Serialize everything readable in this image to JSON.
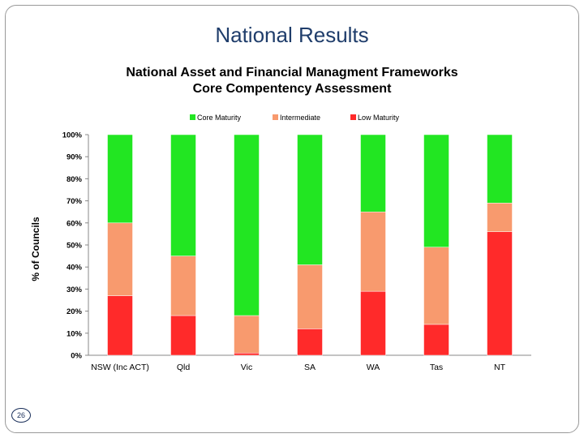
{
  "page_title": "National Results",
  "page_number": "26",
  "chart_data": {
    "type": "bar",
    "stacked": true,
    "title_lines": [
      "National Asset and Financial Managment Frameworks",
      "Core Compentency Assessment"
    ],
    "ylabel": "% of Councils",
    "xlabel": "",
    "ylim": [
      0,
      100
    ],
    "yticks": [
      "0%",
      "10%",
      "20%",
      "30%",
      "40%",
      "50%",
      "60%",
      "70%",
      "80%",
      "90%",
      "100%"
    ],
    "categories": [
      "NSW (Inc ACT)",
      "Qld",
      "Vic",
      "SA",
      "WA",
      "Tas",
      "NT"
    ],
    "legend_position": "top",
    "grid": false,
    "series": [
      {
        "name": "Low Maturity",
        "color": "#ff2a2a",
        "values": [
          27,
          18,
          1,
          12,
          29,
          14,
          56
        ]
      },
      {
        "name": "Intermediate",
        "color": "#f89a6e",
        "values": [
          33,
          27,
          17,
          29,
          36,
          35,
          13
        ]
      },
      {
        "name": "Core Maturity",
        "color": "#22e622",
        "values": [
          40,
          55,
          82,
          59,
          35,
          51,
          31
        ]
      }
    ],
    "legend_order": [
      "Core Maturity",
      "Intermediate",
      "Low Maturity"
    ]
  }
}
